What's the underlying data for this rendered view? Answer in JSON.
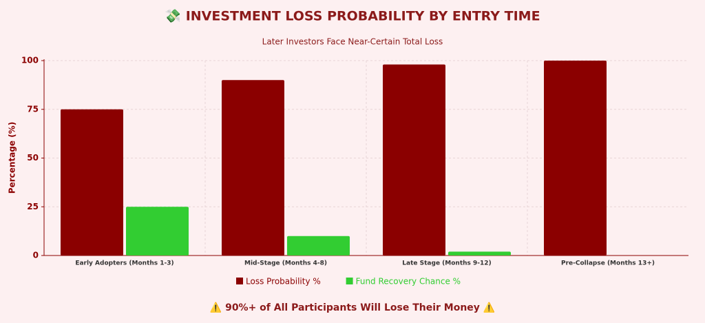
{
  "chart_data": {
    "type": "bar",
    "title": "💸 INVESTMENT LOSS PROBABILITY BY ENTRY TIME",
    "subtitle": "Later Investors Face Near-Certain Total Loss",
    "y_label": "Percentage (%)",
    "categories": [
      "Early Adopters (Months 1-3)",
      "Mid-Stage (Months 4-8)",
      "Late Stage (Months 9-12)",
      "Pre-Collapse (Months 13+)"
    ],
    "series": [
      {
        "name": "Loss Probability %",
        "color": "#8b0000",
        "values": [
          75,
          90,
          98,
          100
        ]
      },
      {
        "name": "Fund Recovery Chance %",
        "color": "#32cd32",
        "values": [
          25,
          10,
          2,
          0
        ]
      }
    ],
    "ylim": [
      0,
      100
    ],
    "yticks": [
      0,
      25,
      50,
      75,
      100
    ],
    "grid": true,
    "legend": "bottom",
    "footer": "⚠️ 90%+ of All Participants Will Lose Their Money ⚠️"
  }
}
